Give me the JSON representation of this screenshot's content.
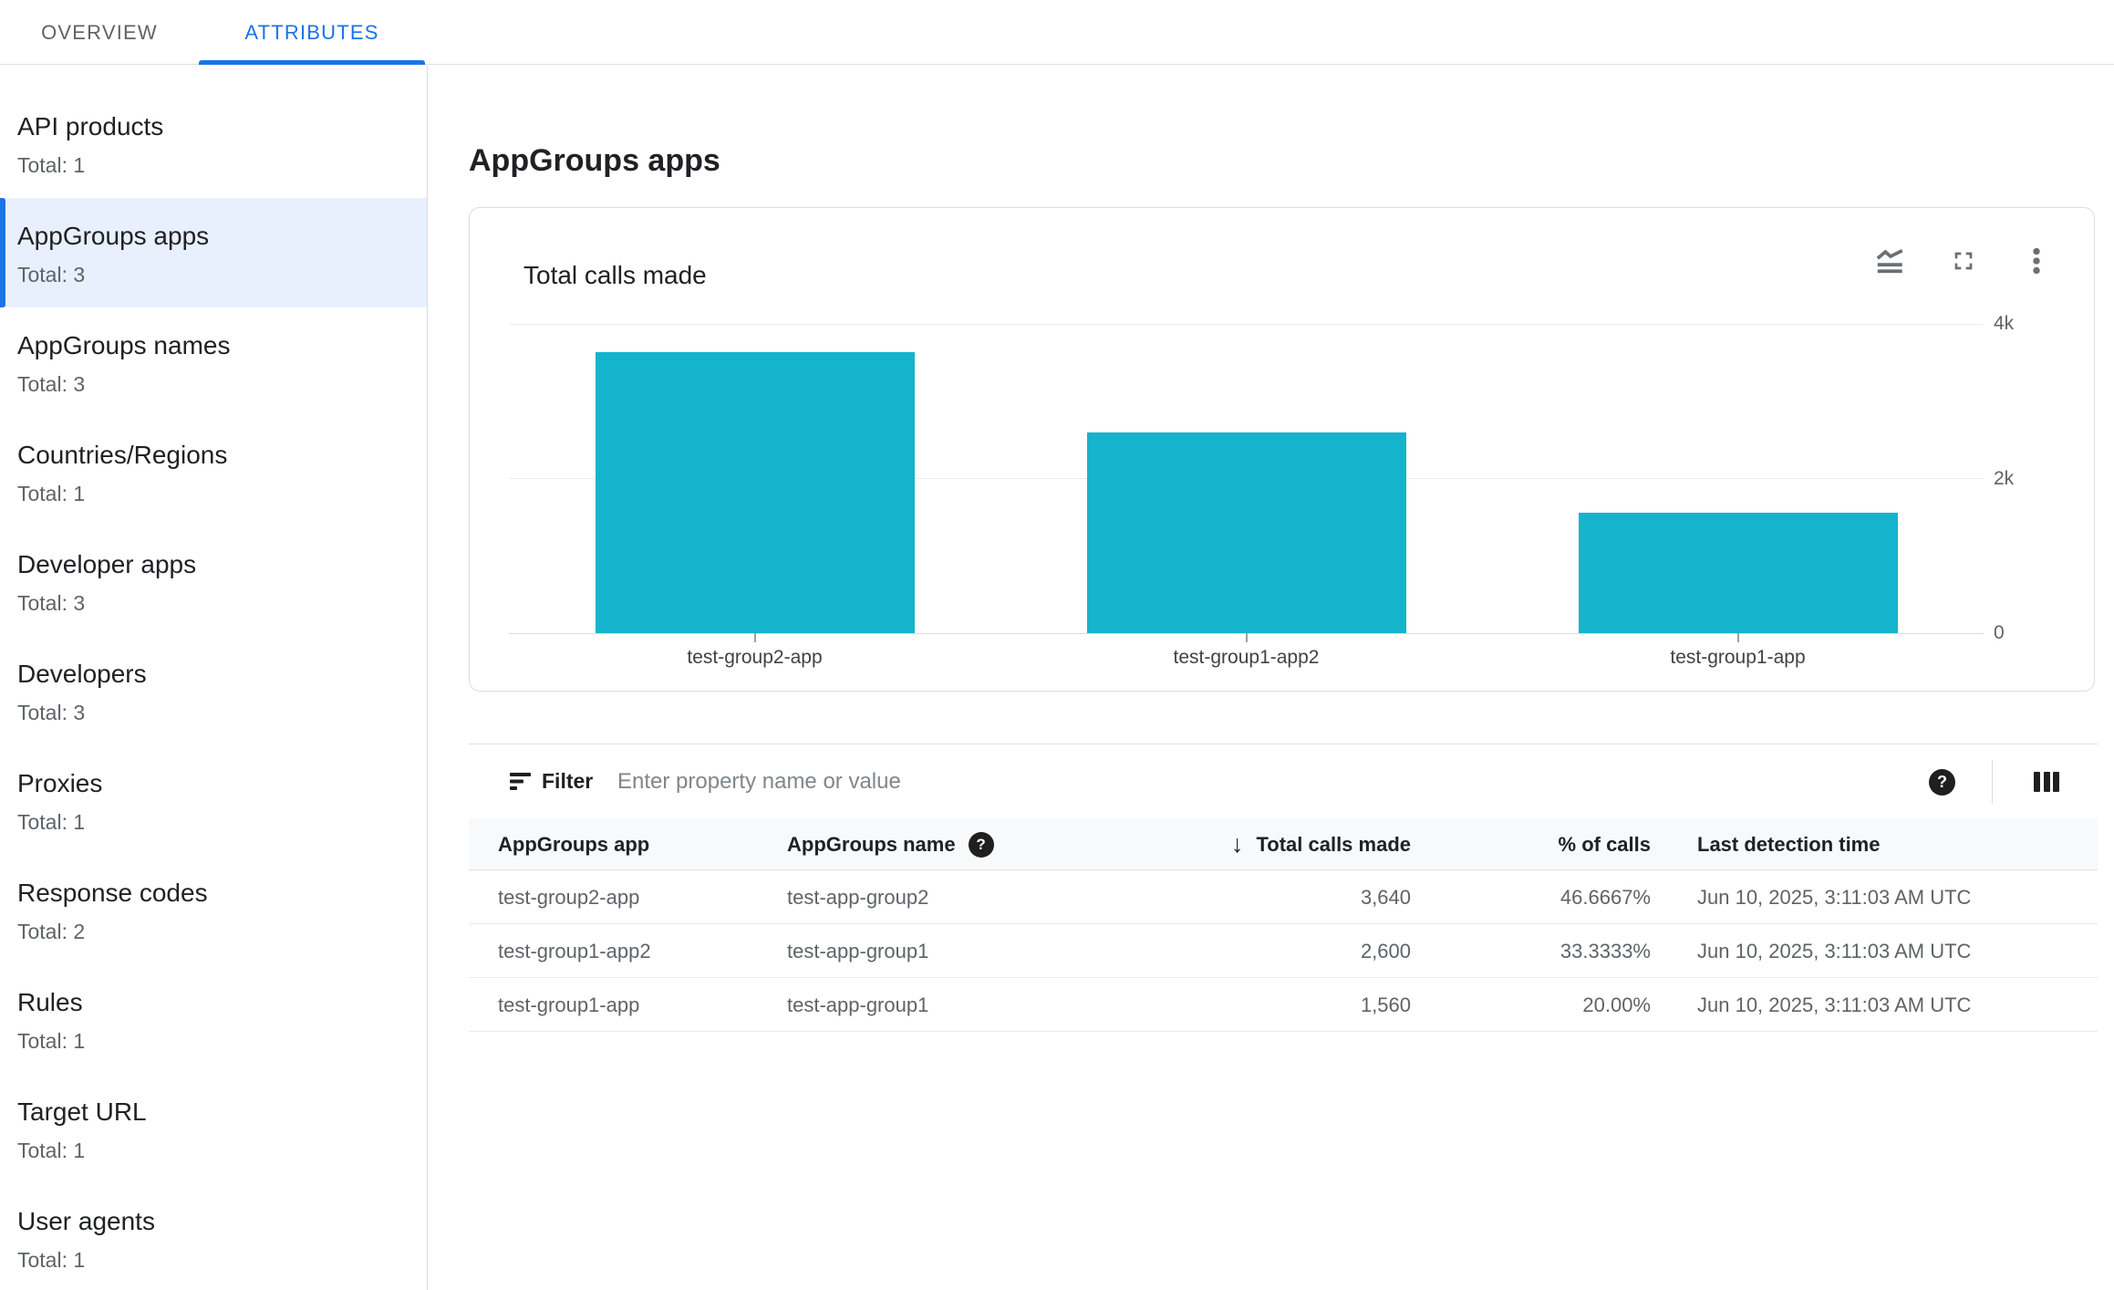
{
  "tabs": [
    {
      "label": "OVERVIEW",
      "active": false
    },
    {
      "label": "ATTRIBUTES",
      "active": true
    }
  ],
  "sidebar": {
    "items": [
      {
        "label": "API products",
        "total": "Total: 1",
        "selected": false
      },
      {
        "label": "AppGroups apps",
        "total": "Total: 3",
        "selected": true
      },
      {
        "label": "AppGroups names",
        "total": "Total: 3",
        "selected": false
      },
      {
        "label": "Countries/Regions",
        "total": "Total: 1",
        "selected": false
      },
      {
        "label": "Developer apps",
        "total": "Total: 3",
        "selected": false
      },
      {
        "label": "Developers",
        "total": "Total: 3",
        "selected": false
      },
      {
        "label": "Proxies",
        "total": "Total: 1",
        "selected": false
      },
      {
        "label": "Response codes",
        "total": "Total: 2",
        "selected": false
      },
      {
        "label": "Rules",
        "total": "Total: 1",
        "selected": false
      },
      {
        "label": "Target URL",
        "total": "Total: 1",
        "selected": false
      },
      {
        "label": "User agents",
        "total": "Total: 1",
        "selected": false
      }
    ]
  },
  "page": {
    "title": "AppGroups apps"
  },
  "chart_card": {
    "icons": [
      "chart-type-icon",
      "fullscreen-icon",
      "more-options-icon"
    ]
  },
  "chart_data": {
    "type": "bar",
    "title": "Total calls made",
    "categories": [
      "test-group2-app",
      "test-group1-app2",
      "test-group1-app"
    ],
    "values": [
      3640,
      2600,
      1560
    ],
    "xlabel": "",
    "ylabel": "",
    "ylim": [
      0,
      4000
    ],
    "yticks": [
      {
        "value": 0,
        "label": "0"
      },
      {
        "value": 2000,
        "label": "2k"
      },
      {
        "value": 4000,
        "label": "4k"
      }
    ],
    "bar_color": "#14b4cc",
    "grid": true,
    "legend": "none"
  },
  "filter_bar": {
    "label": "Filter",
    "placeholder": "Enter property name or value",
    "icons": [
      "filter-list-icon",
      "help-icon",
      "column-selector-icon"
    ]
  },
  "glyphs": {
    "help": "?",
    "sort_desc": "↓"
  },
  "table": {
    "columns": [
      {
        "label": "AppGroups app"
      },
      {
        "label": "AppGroups name",
        "help_icon": true
      },
      {
        "label": "Total calls made",
        "align": "right",
        "sort": "desc"
      },
      {
        "label": "% of calls",
        "align": "right"
      },
      {
        "label": "Last detection time"
      }
    ],
    "rows": [
      {
        "app": "test-group2-app",
        "name": "test-app-group2",
        "calls": "3,640",
        "pct": "46.6667%",
        "time": "Jun 10, 2025, 3:11:03 AM UTC"
      },
      {
        "app": "test-group1-app2",
        "name": "test-app-group1",
        "calls": "2,600",
        "pct": "33.3333%",
        "time": "Jun 10, 2025, 3:11:03 AM UTC"
      },
      {
        "app": "test-group1-app",
        "name": "test-app-group1",
        "calls": "1,560",
        "pct": "20.00%",
        "time": "Jun 10, 2025, 3:11:03 AM UTC"
      }
    ]
  },
  "colors": {
    "accent_blue": "#1a73e8",
    "bar_teal": "#14b4cc",
    "selected_bg": "#e8f0fe",
    "text_primary": "#202124",
    "text_secondary": "#5f6368",
    "header_bg": "#f8f9fa",
    "border": "#dadce0"
  }
}
